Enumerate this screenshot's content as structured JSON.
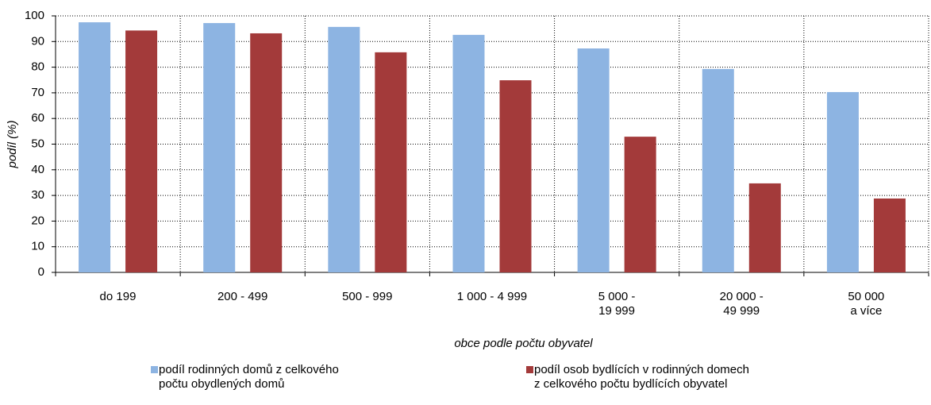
{
  "chart_data": {
    "type": "bar",
    "x_label": "obce podle počtu obyvatel",
    "y_label": "podíl (%)",
    "categories": [
      "do 199",
      "200 - 499",
      "500 - 999",
      "1 000 - 4 999",
      "5 000 -\n19 999",
      "20 000 -\n49 999",
      "50 000\na více"
    ],
    "series": [
      {
        "name": "podíl rodinných domů z celkového\npočtu obydlených domů",
        "color": "#8db4e2",
        "values": [
          97.5,
          97.2,
          95.7,
          92.6,
          87.3,
          79.3,
          70.3
        ]
      },
      {
        "name": "podíl osob bydlících v rodinných domech\nz celkového  počtu bydlících obyvatel",
        "color": "#a33a3a",
        "values": [
          94.3,
          93.2,
          85.8,
          74.9,
          52.9,
          34.7,
          28.8
        ]
      }
    ],
    "ylim": [
      0,
      100
    ],
    "yticks": [
      0,
      10,
      20,
      30,
      40,
      50,
      60,
      70,
      80,
      90,
      100
    ],
    "grid": true
  }
}
